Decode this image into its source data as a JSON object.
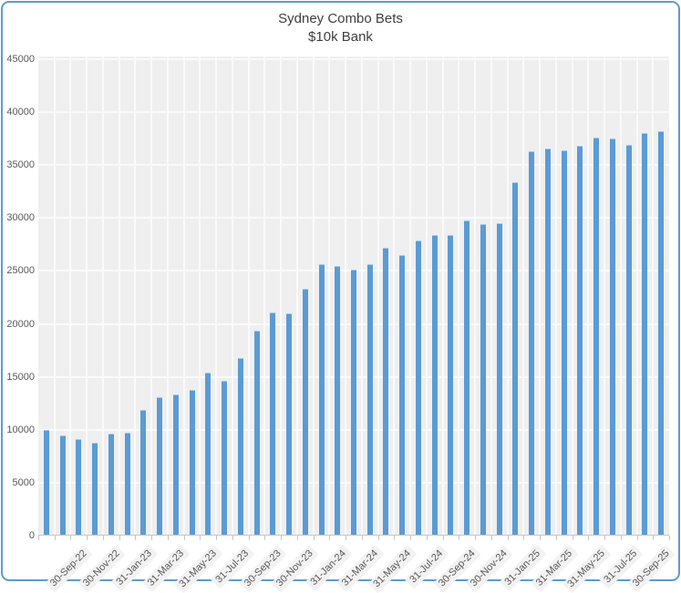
{
  "chart_data": {
    "type": "bar",
    "title": "Sydney Combo Bets",
    "subtitle": "$10k Bank",
    "xlabel": "",
    "ylabel": "",
    "ylim": [
      0,
      45000
    ],
    "yticks": [
      0,
      5000,
      10000,
      15000,
      20000,
      25000,
      30000,
      35000,
      40000,
      45000
    ],
    "grid": true,
    "legend": false,
    "xtick_rotation_deg": 45,
    "categories": [
      "",
      "",
      "30-Sep-22",
      "",
      "30-Nov-22",
      "",
      "31-Jan-23",
      "",
      "31-Mar-23",
      "",
      "31-May-23",
      "",
      "31-Jul-23",
      "",
      "30-Sep-23",
      "",
      "30-Nov-23",
      "",
      "31-Jan-24",
      "",
      "31-Mar-24",
      "",
      "31-May-24",
      "",
      "31-Jul-24",
      "",
      "30-Sep-24",
      "",
      "30-Nov-24",
      "",
      "31-Jan-25",
      "",
      "31-Mar-25",
      "",
      "31-May-25",
      "",
      "31-Jul-25",
      "",
      "30-Sep-25"
    ],
    "values": [
      10000,
      9450,
      9100,
      8800,
      9600,
      9700,
      11900,
      13100,
      13300,
      13800,
      15400,
      14600,
      16800,
      19400,
      21100,
      21000,
      23300,
      25600,
      25500,
      25100,
      25600,
      27200,
      26500,
      27900,
      28400,
      28400,
      29800,
      29400,
      29500,
      33400,
      36300,
      36600,
      36400,
      36800,
      37600,
      37500,
      36900,
      38000,
      38200
    ],
    "colors": {
      "bar": "#5b9bd5",
      "plot_bg": "#efefef",
      "gridline": "#fafafa",
      "axis_text": "#595959",
      "title_text": "#3f3f3f",
      "frame_border": "#5b9bd5",
      "chart_bg": "#ffffff",
      "xlabel_bg": "#f2f2f2",
      "axis_line": "#c6c6c6"
    }
  }
}
